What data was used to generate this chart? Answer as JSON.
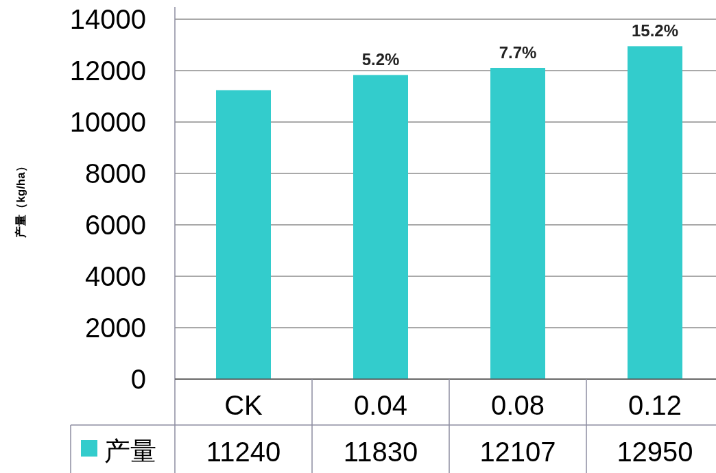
{
  "chart_data": {
    "type": "bar",
    "ylabel": "产量（kg/ha）",
    "categories": [
      "CK",
      "0.04",
      "0.08",
      "0.12"
    ],
    "series": [
      {
        "name": "产量",
        "color": "#33cccc",
        "values": [
          11240,
          11830,
          12107,
          12950
        ],
        "value_labels": [
          "11240",
          "11830",
          "12107",
          "12950"
        ]
      }
    ],
    "annotations": [
      {
        "text": "5.2%",
        "x": "0.04",
        "y": 11830
      },
      {
        "text": "7.7%",
        "x": "0.08",
        "y": 12107
      },
      {
        "text": "15.2%",
        "x": "0.12",
        "y": 12950
      }
    ],
    "ylim": [
      0,
      14000
    ],
    "yticks": [
      0,
      2000,
      4000,
      6000,
      8000,
      10000,
      12000,
      14000
    ],
    "grid": "y",
    "legend": "bottom left"
  }
}
